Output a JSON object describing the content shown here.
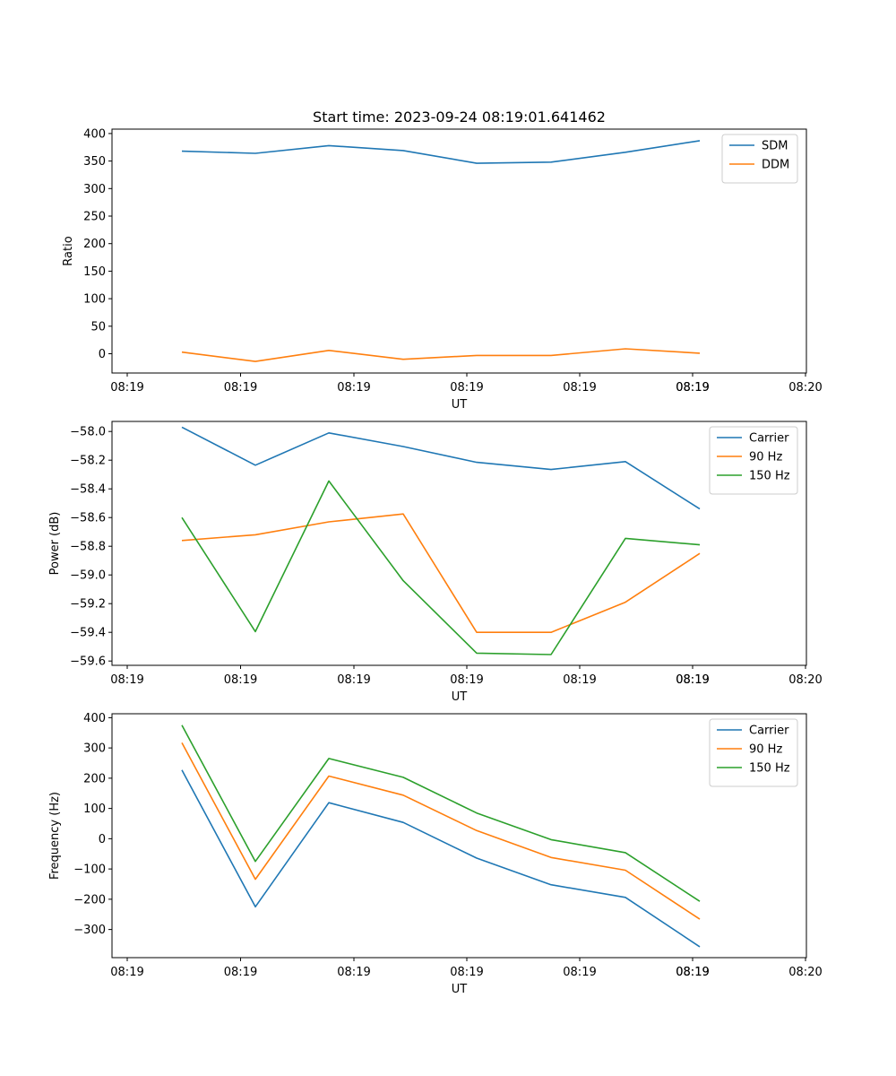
{
  "figure_title": "Start time: 2023-09-24 08:19:01.641462",
  "colors": {
    "blue": "#1f77b4",
    "orange": "#ff7f0e",
    "green": "#2ca02c"
  },
  "chart_data": [
    {
      "type": "line",
      "title": "Start time: 2023-09-24 08:19:01.641462",
      "xlabel": "UT",
      "ylabel": "Ratio",
      "x_tick_labels": [
        "08:19",
        "08:19",
        "08:19",
        "08:19",
        "08:19",
        "08:19",
        "08:19",
        "08:20"
      ],
      "y_ticks": [
        0,
        50,
        100,
        150,
        200,
        250,
        300,
        350,
        400
      ],
      "y_tick_labels": [
        "0",
        "50",
        "100",
        "150",
        "200",
        "250",
        "300",
        "350",
        "400"
      ],
      "ylim": [
        -35,
        408
      ],
      "legend_position": "top-right",
      "series": [
        {
          "name": "SDM",
          "color": "#1f77b4",
          "values": [
            368,
            364,
            378,
            369,
            346,
            348,
            366,
            387
          ]
        },
        {
          "name": "DDM",
          "color": "#ff7f0e",
          "values": [
            3,
            -14,
            6,
            -10,
            -3,
            -3,
            9,
            1
          ]
        }
      ]
    },
    {
      "type": "line",
      "xlabel": "UT",
      "ylabel": "Power (dB)",
      "x_tick_labels": [
        "08:19",
        "08:19",
        "08:19",
        "08:19",
        "08:19",
        "08:19",
        "08:19",
        "08:20"
      ],
      "y_ticks": [
        -59.6,
        -59.4,
        -59.2,
        -59.0,
        -58.8,
        -58.6,
        -58.4,
        -58.2,
        -58.0
      ],
      "y_tick_labels": [
        "−59.6",
        "−59.4",
        "−59.2",
        "−59.0",
        "−58.8",
        "−58.6",
        "−58.4",
        "−58.2",
        "−58.0"
      ],
      "ylim": [
        -59.63,
        -57.93
      ],
      "legend_position": "top-right",
      "series": [
        {
          "name": "Carrier",
          "color": "#1f77b4",
          "values": [
            -57.97,
            -58.235,
            -58.01,
            -58.105,
            -58.215,
            -58.265,
            -58.21,
            -58.54
          ]
        },
        {
          "name": "90 Hz",
          "color": "#ff7f0e",
          "values": [
            -58.76,
            -58.72,
            -58.63,
            -58.575,
            -59.4,
            -59.4,
            -59.19,
            -58.85
          ]
        },
        {
          "name": "150 Hz",
          "color": "#2ca02c",
          "values": [
            -58.6,
            -59.395,
            -58.345,
            -59.04,
            -59.545,
            -59.555,
            -58.745,
            -58.79
          ]
        }
      ]
    },
    {
      "type": "line",
      "xlabel": "UT",
      "ylabel": "Frequency (Hz)",
      "x_tick_labels": [
        "08:19",
        "08:19",
        "08:19",
        "08:19",
        "08:19",
        "08:19",
        "08:19",
        "08:20"
      ],
      "y_ticks": [
        -300,
        -200,
        -100,
        0,
        100,
        200,
        300,
        400
      ],
      "y_tick_labels": [
        "−300",
        "−200",
        "−100",
        "0",
        "100",
        "200",
        "300",
        "400"
      ],
      "ylim": [
        -393,
        413
      ],
      "legend_position": "top-right",
      "series": [
        {
          "name": "Carrier",
          "color": "#1f77b4",
          "values": [
            227,
            -225,
            119,
            54,
            -64,
            -152,
            -194,
            -357
          ]
        },
        {
          "name": "90 Hz",
          "color": "#ff7f0e",
          "values": [
            317,
            -134,
            207,
            144,
            27,
            -62,
            -104,
            -266
          ]
        },
        {
          "name": "150 Hz",
          "color": "#2ca02c",
          "values": [
            375,
            -75,
            265,
            203,
            85,
            -3,
            -46,
            -207
          ]
        }
      ]
    }
  ]
}
